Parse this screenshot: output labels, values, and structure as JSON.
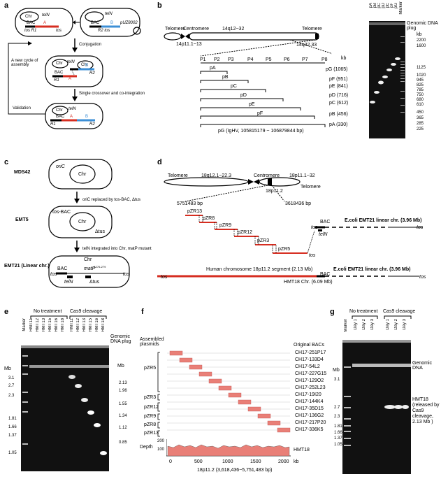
{
  "panels": {
    "a": {
      "label": "a",
      "cell1": {
        "chr": "Chr",
        "teln": "telN",
        "bac": "BAC",
        "a": "A",
        "tos_r1": "tos R1",
        "tos": "tos"
      },
      "cell2": {
        "teln": "telN",
        "bac": "BAC",
        "b": "B",
        "r2_tos": "R2 tos",
        "plasmid": "pUZ8002"
      },
      "step1": "Conjugation",
      "cycle": "A new cycle of assembly",
      "cell3": {
        "chr": "Chr",
        "teln": "telN",
        "bac": "BAC",
        "a": "A",
        "b": "B",
        "r1": "R1",
        "r2": "R2",
        "chr2": "Chr"
      },
      "step2": "Single crossover and co-integration",
      "validation": "Validation",
      "cell4": {
        "chr": "Chr",
        "teln": "telN",
        "bac": "BAC",
        "a": "A",
        "b": "B",
        "r1": "R1",
        "r2": "R2"
      }
    },
    "b": {
      "label": "b",
      "telomere_left": "Telomere",
      "centromere": "Centromere",
      "region": "14q12~32",
      "telomere_right": "Telomere",
      "left_band": "14p11.1~13",
      "right_band": "14q32.33",
      "probes": [
        "P1",
        "P2",
        "P3",
        "P4",
        "P5",
        "P6",
        "P7",
        "P8"
      ],
      "constructs": [
        "pA",
        "pB",
        "pC",
        "pD",
        "pE",
        "pF"
      ],
      "pg_label": "pG (IgHV, 105815179 ~ 106879844 bp)",
      "kb": "kb",
      "gel_left_labels": [
        "pG (1065)",
        "pF (951)",
        "pE (841)",
        "pD (716)",
        "pC (612)",
        "pB (456)",
        "pA (330)"
      ],
      "lanes": [
        "pA",
        "pB",
        "pC",
        "pD",
        "pE",
        "pF",
        "pG",
        "Marker"
      ],
      "plug": "Genomic DNA plug",
      "kb2": "kb",
      "marker_sizes": [
        "2200",
        "1600",
        "1125",
        "1020",
        "945",
        "825",
        "785",
        "750",
        "680",
        "610",
        "450",
        "365",
        "285",
        "225"
      ]
    },
    "c": {
      "label": "c",
      "mds42": "MDS42",
      "oric": "oriC",
      "chr": "Chr",
      "step1": "oriC replaced by tos-BAC, Δtus",
      "emt5": "EMT5",
      "tosbac": "tos-BAC",
      "chr2": "Chr",
      "dtus": "Δtus",
      "step2": "telN integrated into Chr, matP mutant",
      "emt21": "EMT21 (Linear chr.)",
      "chr3": "Chr",
      "bac": "BAC",
      "matp": "matP",
      "matp_sup": "Δ276-279",
      "tos_l": "tos",
      "tos_r": "tos",
      "teln": "telN",
      "dtus2": "Δtus"
    },
    "d": {
      "label": "d",
      "telomere_left": "Telomere",
      "region": "18q12.1~22.3",
      "centromere": "Centromere",
      "band": "18p11.1~32",
      "telomere_right": "Telomere",
      "band2": "18p11.2",
      "pos_left": "5751483 bp",
      "pos_right": "3618436 bp",
      "plasmids": [
        "pZR13",
        "pZR8",
        "pZR9",
        "pZR12",
        "pZR3",
        "pZR5"
      ],
      "bac": "BAC",
      "tos": "tos",
      "teln": "telN",
      "tos2": "tos",
      "ecoli1": "E.coli EMT21 linear chr. (3.96 Mb)",
      "tos3": "tos",
      "human": "Human chromosome 18p11.2 segment (2.13 Mb)",
      "ecoli2": "E.coli EMT21 linear chr. (3.96 Mb)",
      "bac2": "BAC",
      "tos_l": "tos",
      "tos_r": "tos",
      "hmt18": "HMT18 Chr. (6.09 Mb)"
    },
    "e": {
      "label": "e",
      "no_treatment": "No treatment",
      "cas9": "Cas9 cleavage",
      "lanes": [
        "Marker",
        "HMT11",
        "HMT12",
        "HMT13",
        "HMT15",
        "HMT16",
        "HMT18",
        "HMT11",
        "HMT12",
        "HMT13",
        "HMT15",
        "HMT16",
        "HMT18"
      ],
      "plug": "Genomic DNA plug",
      "mb_left": "Mb",
      "mb_right": "Mb",
      "left_sizes": [
        "3.1",
        "2.7",
        "2.3",
        "1.81",
        "1.66",
        "1.37",
        "1.05"
      ],
      "right_sizes": [
        "2.13",
        "1.96",
        "1.55",
        "1.34",
        "1.12",
        "0.85"
      ]
    },
    "f": {
      "label": "f",
      "assembled": "Assembled plasmids",
      "original": "Original BACs",
      "groups": [
        "pZR5",
        "pZR3",
        "pZR12",
        "pZR9",
        "pZR8",
        "pZR13"
      ],
      "bacs": [
        "CH17-251P17",
        "CH17-133D4",
        "CH17-54L2",
        "CH17-227G15",
        "CH17-129O2",
        "CH17-252L23",
        "CH17-19I20",
        "CH17-144K4",
        "CH17-35D15",
        "CH17-136G2",
        "CH17-217P20",
        "CH17-336K5"
      ],
      "depth": "Depth",
      "depth_ticks": [
        "200",
        "100"
      ],
      "sample": "HMT18",
      "x_ticks": [
        "0",
        "500",
        "1000",
        "1500",
        "2000"
      ],
      "x_unit": "kb",
      "xlabel": "18p11.2 (3,618,436~5,751,483 bp)"
    },
    "g": {
      "label": "g",
      "no_treatment": "No treatment",
      "cas9": "Cas9 cleavage",
      "lanes": [
        "Marker",
        "Day 1",
        "Day 2",
        "Day 3",
        "Day 1",
        "Day 2",
        "Day 3"
      ],
      "mb": "Mb",
      "sizes": [
        "3.1",
        "2.7",
        "2.3",
        "1.81",
        "1.66",
        "1.37",
        "1.05"
      ],
      "genomic": "Genomic DNA",
      "hmt18": "HMT18 (released by Cas9 cleavage, 2.13 Mb )"
    }
  }
}
